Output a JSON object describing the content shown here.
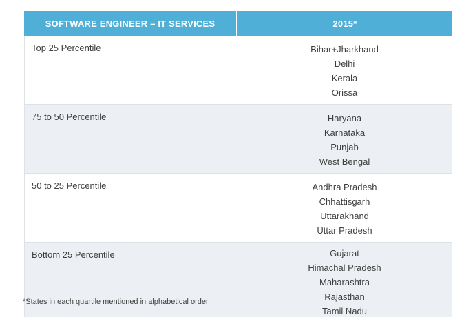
{
  "chart_data": {
    "type": "table",
    "title": "SOFTWARE ENGINEER – IT SERVICES",
    "columns": [
      "SOFTWARE ENGINEER – IT SERVICES",
      "2015*"
    ],
    "rows": [
      {
        "label": "Top 25 Percentile",
        "states": [
          "Bihar+Jharkhand",
          "Delhi",
          "Kerala",
          "Orissa"
        ]
      },
      {
        "label": "75 to 50 Percentile",
        "states": [
          "Haryana",
          "Karnataka",
          "Punjab",
          "West Bengal"
        ]
      },
      {
        "label": "50 to 25 Percentile",
        "states": [
          "Andhra Pradesh",
          "Chhattisgarh",
          "Uttarakhand",
          "Uttar Pradesh"
        ]
      },
      {
        "label": "Bottom 25 Percentile",
        "states": [
          "Gujarat",
          "Himachal Pradesh",
          "Maharashtra",
          "Rajasthan",
          "Tamil Nadu"
        ]
      }
    ],
    "footnote": "*States in each quartile mentioned in alphabetical order"
  },
  "colors": {
    "header_bg": "#4fafd6",
    "header_text": "#ffffff",
    "row_alt_bg": "#ecf0f4",
    "border": "#dde2e7",
    "border_dark": "#ccd3d9",
    "divider": "#ccd3d9",
    "text": "#3e3e3e"
  }
}
